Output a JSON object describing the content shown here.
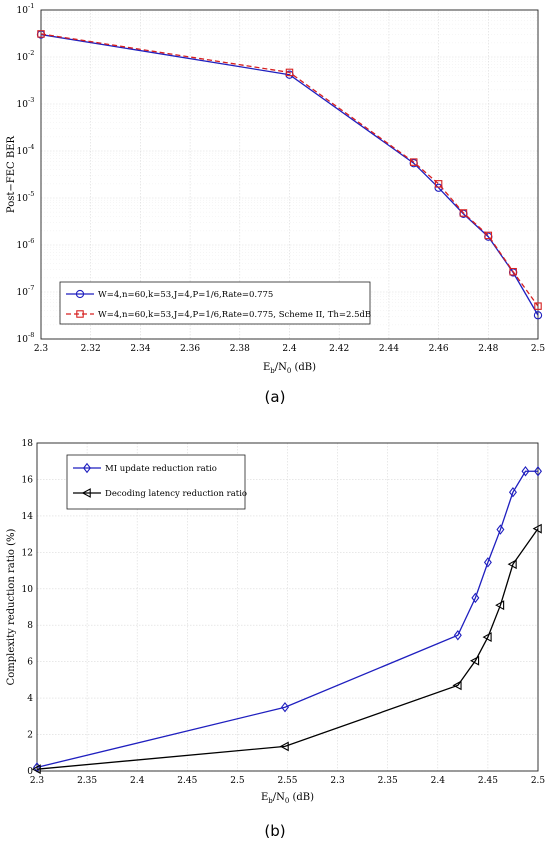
{
  "chart_data": [
    {
      "type": "line",
      "panel": "(a)",
      "xlabel_main": "E",
      "xlabel_sub": "b",
      "xlabel_mid": "/N",
      "xlabel_sub2": "0",
      "xlabel_tail": " (dB)",
      "ylabel": "Post−FEC BER",
      "xlim": [
        2.3,
        2.5
      ],
      "ylim_log10": [
        -8,
        -1
      ],
      "y_scale": "log",
      "grid": true,
      "legend_position": "bottom-left",
      "xticks": [
        "2.3",
        "2.32",
        "2.34",
        "2.36",
        "2.38",
        "2.4",
        "2.42",
        "2.44",
        "2.46",
        "2.48",
        "2.5"
      ],
      "xtick_values": [
        2.3,
        2.32,
        2.34,
        2.36,
        2.38,
        2.4,
        2.42,
        2.44,
        2.46,
        2.48,
        2.5
      ],
      "yticks_base": [
        "10",
        "10",
        "10",
        "10",
        "10",
        "10",
        "10",
        "10"
      ],
      "yticks_exp": [
        "-8",
        "-7",
        "-6",
        "-5",
        "-4",
        "-3",
        "-2",
        "-1"
      ],
      "ytick_exp_values": [
        -8,
        -7,
        -6,
        -5,
        -4,
        -3,
        -2,
        -1
      ],
      "series": [
        {
          "name": "W=4,n=60,k=53,J=4,P=1/6,Rate=0.775",
          "color": "#1f1fbf",
          "dash": "solid",
          "marker": "circle",
          "x": [
            2.3,
            2.4,
            2.45,
            2.46,
            2.47,
            2.48,
            2.49,
            2.5
          ],
          "y": [
            0.03,
            0.0042,
            5.5e-05,
            1.65e-05,
            4.6e-06,
            1.5e-06,
            2.6e-07,
            3.2e-08
          ]
        },
        {
          "name": "W=4,n=60,k=53,J=4,P=1/6,Rate=0.775, Scheme II, Th=2.5dB",
          "color": "#d62020",
          "dash": "dashed",
          "marker": "square",
          "x": [
            2.3,
            2.4,
            2.45,
            2.46,
            2.47,
            2.48,
            2.49,
            2.5
          ],
          "y": [
            0.031,
            0.0047,
            5.8e-05,
            2e-05,
            4.8e-06,
            1.6e-06,
            2.7e-07,
            5e-08
          ]
        }
      ]
    },
    {
      "type": "line",
      "panel": "(b)",
      "xlabel_main": "E",
      "xlabel_sub": "b",
      "xlabel_mid": "/N",
      "xlabel_sub2": "0",
      "xlabel_tail": " (dB)",
      "ylabel": "Complexity reduction ratio (%)",
      "ylim": [
        0,
        18
      ],
      "grid": true,
      "legend_position": "top-left",
      "xticks": [
        "2.3",
        "2.35",
        "2.4",
        "2.45",
        "2.5",
        "2.55",
        "2.3",
        "2.35",
        "2.4",
        "2.45",
        "2.5"
      ],
      "yticks": [
        "0",
        "2",
        "4",
        "6",
        "8",
        "10",
        "12",
        "14",
        "16",
        "18"
      ],
      "series": [
        {
          "name": "MI update reduction ratio",
          "color": "#1f1fbf",
          "marker": "diamond",
          "x_index": [
            0,
            4.95,
            8.4,
            8.75,
            9.0,
            9.25,
            9.5,
            9.75,
            10.0
          ],
          "y": [
            0.2,
            3.5,
            7.45,
            9.5,
            11.45,
            13.25,
            15.3,
            16.45,
            16.45
          ]
        },
        {
          "name": "Decoding latency reduction ratio",
          "color": "#000000",
          "marker": "triangle-left",
          "x_index": [
            0,
            4.95,
            8.4,
            8.75,
            9.0,
            9.25,
            9.5,
            10.0
          ],
          "y": [
            0.1,
            1.35,
            4.7,
            6.05,
            7.35,
            9.1,
            11.35,
            13.3
          ]
        }
      ]
    }
  ],
  "captions": {
    "a": "(a)",
    "b": "(b)"
  }
}
